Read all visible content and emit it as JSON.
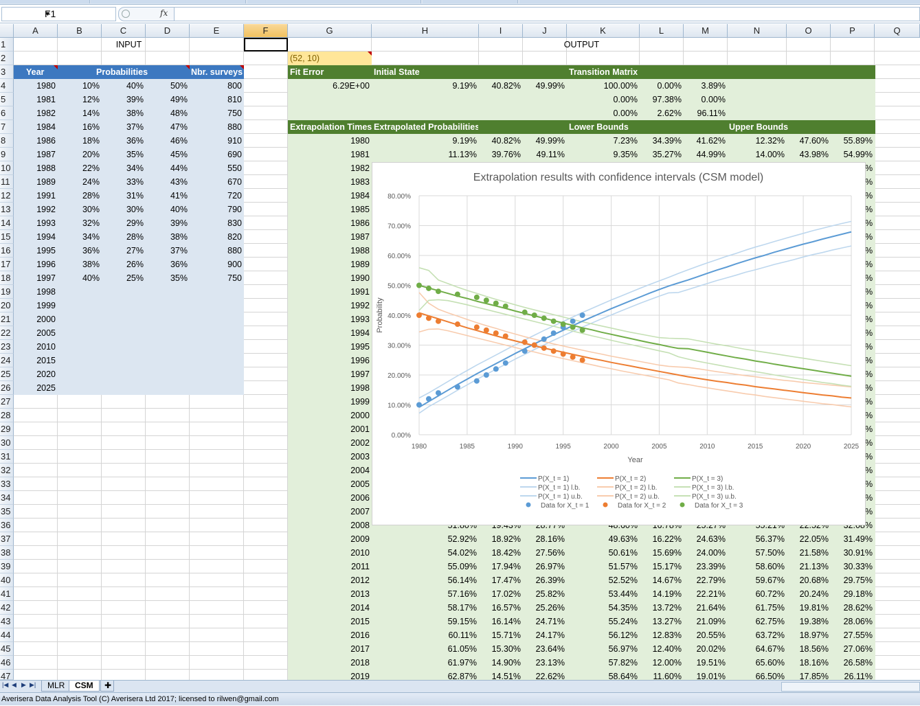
{
  "formula_bar": {
    "name_box": "F1",
    "fx_label": "fx",
    "formula": ""
  },
  "columns": [
    "A",
    "B",
    "C",
    "D",
    "E",
    "F",
    "G",
    "H",
    "I",
    "J",
    "K",
    "L",
    "M",
    "N",
    "O",
    "P",
    "Q"
  ],
  "rows": [
    "1",
    "2",
    "3",
    "4",
    "5",
    "6",
    "7",
    "8",
    "9",
    "10",
    "11",
    "12",
    "13",
    "14",
    "15",
    "16",
    "17",
    "18",
    "19",
    "20",
    "21",
    "22",
    "23",
    "24",
    "25",
    "26",
    "27",
    "28",
    "29",
    "30",
    "31",
    "32",
    "33",
    "34",
    "35",
    "36",
    "37",
    "38",
    "39",
    "40",
    "41",
    "42",
    "43",
    "44",
    "45",
    "46",
    "47"
  ],
  "input": {
    "title": "INPUT",
    "headers": {
      "year": "Year",
      "probabilities": "Probabilities",
      "surveys": "Nbr. surveys"
    },
    "data": [
      [
        "1980",
        "10%",
        "40%",
        "50%",
        "800"
      ],
      [
        "1981",
        "12%",
        "39%",
        "49%",
        "810"
      ],
      [
        "1982",
        "14%",
        "38%",
        "48%",
        "750"
      ],
      [
        "1984",
        "16%",
        "37%",
        "47%",
        "880"
      ],
      [
        "1986",
        "18%",
        "36%",
        "46%",
        "910"
      ],
      [
        "1987",
        "20%",
        "35%",
        "45%",
        "690"
      ],
      [
        "1988",
        "22%",
        "34%",
        "44%",
        "550"
      ],
      [
        "1989",
        "24%",
        "33%",
        "43%",
        "670"
      ],
      [
        "1991",
        "28%",
        "31%",
        "41%",
        "720"
      ],
      [
        "1992",
        "30%",
        "30%",
        "40%",
        "790"
      ],
      [
        "1993",
        "32%",
        "29%",
        "39%",
        "830"
      ],
      [
        "1994",
        "34%",
        "28%",
        "38%",
        "820"
      ],
      [
        "1995",
        "36%",
        "27%",
        "37%",
        "880"
      ],
      [
        "1996",
        "38%",
        "26%",
        "36%",
        "900"
      ],
      [
        "1997",
        "40%",
        "25%",
        "35%",
        "750"
      ]
    ],
    "extra_years": [
      "1998",
      "1999",
      "2000",
      "2005",
      "2010",
      "2015",
      "2020",
      "2025"
    ]
  },
  "output": {
    "title": "OUTPUT",
    "size_note": "(52, 10)",
    "headers": {
      "fit_error": "Fit Error",
      "initial_state": "Initial State",
      "transition": "Transition Matrix",
      "extrap_times": "Extrapolation Times",
      "extrap_probs": "Extrapolated Probabilities",
      "lower": "Lower Bounds",
      "upper": "Upper Bounds"
    },
    "fit_error": "6.29E+00",
    "initial_state": [
      "9.19%",
      "40.82%",
      "49.99%"
    ],
    "transition": [
      [
        "100.00%",
        "0.00%",
        "3.89%"
      ],
      [
        "0.00%",
        "97.38%",
        "0.00%"
      ],
      [
        "0.00%",
        "2.62%",
        "96.11%"
      ]
    ],
    "rows_top": [
      {
        "year": "1980",
        "p": [
          "9.19%",
          "40.82%",
          "49.99%"
        ],
        "lb": [
          "7.23%",
          "34.39%",
          "41.62%"
        ],
        "ub": [
          "12.32%",
          "47.60%",
          "55.89%"
        ]
      },
      {
        "year": "1981",
        "p": [
          "11.13%",
          "39.76%",
          "49.11%"
        ],
        "lb": [
          "9.35%",
          "35.27%",
          "44.99%"
        ],
        "ub": [
          "14.00%",
          "43.98%",
          "54.99%"
        ]
      }
    ],
    "mid_years": [
      "1982",
      "1983",
      "1984",
      "1985",
      "1986",
      "1987",
      "1988",
      "1989",
      "1990",
      "1991",
      "1992",
      "1993",
      "1994",
      "1995",
      "1996",
      "1997",
      "1998",
      "1999",
      "2000",
      "2001",
      "2002",
      "2003",
      "2004",
      "2005",
      "2006",
      "2007"
    ],
    "row_2008": {
      "year": "2008",
      "p": [
        "51.80%",
        "19.43%",
        "28.77%"
      ],
      "lb": [
        "48.60%",
        "16.78%",
        "25.27%"
      ],
      "ub": [
        "55.21%",
        "22.52%",
        "32.08%"
      ]
    },
    "rows_bottom": [
      {
        "year": "2009",
        "p": [
          "52.92%",
          "18.92%",
          "28.16%"
        ],
        "lb": [
          "49.63%",
          "16.22%",
          "24.63%"
        ],
        "ub": [
          "56.37%",
          "22.05%",
          "31.49%"
        ]
      },
      {
        "year": "2010",
        "p": [
          "54.02%",
          "18.42%",
          "27.56%"
        ],
        "lb": [
          "50.61%",
          "15.69%",
          "24.00%"
        ],
        "ub": [
          "57.50%",
          "21.58%",
          "30.91%"
        ]
      },
      {
        "year": "2011",
        "p": [
          "55.09%",
          "17.94%",
          "26.97%"
        ],
        "lb": [
          "51.57%",
          "15.17%",
          "23.39%"
        ],
        "ub": [
          "58.60%",
          "21.13%",
          "30.33%"
        ]
      },
      {
        "year": "2012",
        "p": [
          "56.14%",
          "17.47%",
          "26.39%"
        ],
        "lb": [
          "52.52%",
          "14.67%",
          "22.79%"
        ],
        "ub": [
          "59.67%",
          "20.68%",
          "29.75%"
        ]
      },
      {
        "year": "2013",
        "p": [
          "57.16%",
          "17.02%",
          "25.82%"
        ],
        "lb": [
          "53.44%",
          "14.19%",
          "22.21%"
        ],
        "ub": [
          "60.72%",
          "20.24%",
          "29.18%"
        ]
      },
      {
        "year": "2014",
        "p": [
          "58.17%",
          "16.57%",
          "25.26%"
        ],
        "lb": [
          "54.35%",
          "13.72%",
          "21.64%"
        ],
        "ub": [
          "61.75%",
          "19.81%",
          "28.62%"
        ]
      },
      {
        "year": "2015",
        "p": [
          "59.15%",
          "16.14%",
          "24.71%"
        ],
        "lb": [
          "55.24%",
          "13.27%",
          "21.09%"
        ],
        "ub": [
          "62.75%",
          "19.38%",
          "28.06%"
        ]
      },
      {
        "year": "2016",
        "p": [
          "60.11%",
          "15.71%",
          "24.17%"
        ],
        "lb": [
          "56.12%",
          "12.83%",
          "20.55%"
        ],
        "ub": [
          "63.72%",
          "18.97%",
          "27.55%"
        ]
      },
      {
        "year": "2017",
        "p": [
          "61.05%",
          "15.30%",
          "23.64%"
        ],
        "lb": [
          "56.97%",
          "12.40%",
          "20.02%"
        ],
        "ub": [
          "64.67%",
          "18.56%",
          "27.06%"
        ]
      },
      {
        "year": "2018",
        "p": [
          "61.97%",
          "14.90%",
          "23.13%"
        ],
        "lb": [
          "57.82%",
          "12.00%",
          "19.51%"
        ],
        "ub": [
          "65.60%",
          "18.16%",
          "26.58%"
        ]
      },
      {
        "year": "2019",
        "p": [
          "62.87%",
          "14.51%",
          "22.62%"
        ],
        "lb": [
          "58.64%",
          "11.60%",
          "19.01%"
        ],
        "ub": [
          "66.50%",
          "17.85%",
          "26.11%"
        ]
      }
    ],
    "edge_pct": "%"
  },
  "chart_data": {
    "type": "line",
    "title": "Extrapolation results with confidence intervals (CSM model)",
    "xlabel": "Year",
    "ylabel": "Probability",
    "xlim": [
      1980,
      2025
    ],
    "ylim": [
      0,
      80
    ],
    "xticks": [
      "1980",
      "1985",
      "1990",
      "1995",
      "2000",
      "2005",
      "2010",
      "2015",
      "2020",
      "2025"
    ],
    "yticks": [
      "0.00%",
      "10.00%",
      "20.00%",
      "30.00%",
      "40.00%",
      "50.00%",
      "60.00%",
      "70.00%",
      "80.00%"
    ],
    "grid": true,
    "legend_position": "bottom",
    "x": [
      1980,
      1981,
      1982,
      1983,
      1984,
      1985,
      1986,
      1987,
      1988,
      1989,
      1990,
      1991,
      1992,
      1993,
      1994,
      1995,
      1996,
      1997,
      1998,
      1999,
      2000,
      2001,
      2002,
      2003,
      2004,
      2005,
      2006,
      2007,
      2008,
      2009,
      2010,
      2011,
      2012,
      2013,
      2014,
      2015,
      2016,
      2017,
      2018,
      2019,
      2020,
      2021,
      2022,
      2023,
      2024,
      2025
    ],
    "series": [
      {
        "name": "P(X_t = 1)",
        "color": "#5b9bd5",
        "style": "line",
        "values": [
          9.2,
          11.1,
          13.0,
          14.9,
          16.8,
          18.6,
          20.4,
          22.1,
          23.8,
          25.5,
          27.2,
          28.8,
          30.4,
          32.0,
          33.5,
          35.0,
          36.5,
          38.0,
          39.4,
          40.8,
          42.2,
          43.5,
          44.8,
          46.1,
          47.4,
          48.6,
          49.8,
          50.8,
          51.8,
          52.9,
          54.0,
          55.1,
          56.1,
          57.2,
          58.2,
          59.2,
          60.1,
          61.1,
          62.0,
          62.9,
          63.8,
          64.6,
          65.5,
          66.3,
          67.1,
          67.9
        ]
      },
      {
        "name": "P(X_t = 1) l.b.",
        "color": "#bdd7ee",
        "style": "line",
        "values": [
          7.2,
          9.4,
          11.2,
          13.0,
          14.9,
          16.7,
          18.5,
          20.2,
          21.9,
          23.6,
          25.3,
          26.9,
          28.5,
          30.1,
          31.6,
          33.1,
          34.6,
          36.0,
          37.4,
          38.8,
          40.1,
          41.4,
          42.7,
          44.0,
          45.2,
          46.4,
          47.5,
          47.6,
          48.6,
          49.6,
          50.6,
          51.6,
          52.5,
          53.4,
          54.4,
          55.2,
          56.1,
          57.0,
          57.8,
          58.6,
          59.5,
          60.3,
          61.0,
          61.8,
          62.5,
          63.2
        ]
      },
      {
        "name": "P(X_t = 1) u.b.",
        "color": "#bdd7ee",
        "style": "line",
        "values": [
          12.3,
          14.0,
          15.9,
          17.8,
          19.7,
          21.5,
          23.3,
          25.0,
          26.7,
          28.4,
          30.1,
          31.7,
          33.3,
          34.9,
          36.4,
          37.9,
          39.4,
          40.9,
          42.3,
          43.7,
          45.1,
          46.4,
          47.7,
          49.0,
          50.3,
          51.5,
          52.7,
          54.0,
          55.2,
          56.4,
          57.5,
          58.6,
          59.7,
          60.7,
          61.8,
          62.8,
          63.7,
          64.7,
          65.6,
          66.5,
          67.4,
          68.3,
          69.1,
          69.9,
          70.7,
          71.4
        ]
      },
      {
        "name": "P(X_t = 2)",
        "color": "#ed7d31",
        "style": "line",
        "values": [
          40.8,
          39.8,
          38.8,
          37.8,
          36.8,
          35.8,
          34.9,
          34.0,
          33.1,
          32.2,
          31.4,
          30.6,
          29.8,
          29.0,
          28.3,
          27.6,
          26.9,
          26.2,
          25.5,
          24.9,
          24.2,
          23.6,
          23.0,
          22.4,
          21.8,
          21.2,
          20.6,
          20.0,
          19.4,
          18.9,
          18.4,
          17.9,
          17.5,
          17.0,
          16.6,
          16.1,
          15.7,
          15.3,
          14.9,
          14.5,
          14.1,
          13.7,
          13.3,
          13.0,
          12.6,
          12.3
        ]
      },
      {
        "name": "P(X_t = 2) l.b.",
        "color": "#f8cbad",
        "style": "line",
        "values": [
          34.4,
          35.3,
          35.4,
          34.8,
          34.0,
          33.2,
          32.4,
          31.6,
          30.8,
          30.0,
          29.2,
          28.4,
          27.7,
          26.9,
          26.2,
          25.5,
          24.8,
          24.1,
          23.4,
          22.7,
          22.1,
          21.4,
          20.8,
          20.2,
          19.6,
          19.0,
          18.4,
          17.3,
          16.8,
          16.2,
          15.7,
          15.2,
          14.7,
          14.2,
          13.7,
          13.3,
          12.8,
          12.4,
          12.0,
          11.6,
          11.2,
          10.8,
          10.4,
          10.1,
          9.7,
          9.3
        ]
      },
      {
        "name": "P(X_t = 2) u.b.",
        "color": "#f8cbad",
        "style": "line",
        "values": [
          47.6,
          44.0,
          42.0,
          40.8,
          39.7,
          38.6,
          37.5,
          36.5,
          35.6,
          34.6,
          33.7,
          32.8,
          32.0,
          31.2,
          30.4,
          29.7,
          29.0,
          28.3,
          27.6,
          27.0,
          26.3,
          25.7,
          25.1,
          24.5,
          23.9,
          23.3,
          22.9,
          22.7,
          22.5,
          22.1,
          21.6,
          21.1,
          20.7,
          20.2,
          19.8,
          19.4,
          19.0,
          18.6,
          18.2,
          17.9,
          17.5,
          17.2,
          16.9,
          16.6,
          16.3,
          16.0
        ]
      },
      {
        "name": "P(X_t = 3)",
        "color": "#70ad47",
        "style": "line",
        "values": [
          50.0,
          49.1,
          48.2,
          47.3,
          46.4,
          45.6,
          44.7,
          43.9,
          43.1,
          42.3,
          41.4,
          40.6,
          39.8,
          39.0,
          38.2,
          37.4,
          36.6,
          35.8,
          35.1,
          34.3,
          33.6,
          32.9,
          32.2,
          31.5,
          30.8,
          30.2,
          29.5,
          28.9,
          28.8,
          28.2,
          27.6,
          27.0,
          26.4,
          25.8,
          25.3,
          24.7,
          24.2,
          23.6,
          23.1,
          22.6,
          22.1,
          21.6,
          21.1,
          20.6,
          20.1,
          19.6
        ]
      },
      {
        "name": "P(X_t = 3) l.b.",
        "color": "#c5e0b4",
        "style": "line",
        "values": [
          41.6,
          45.0,
          45.2,
          44.9,
          44.2,
          43.5,
          42.7,
          41.9,
          41.1,
          40.3,
          39.5,
          38.7,
          37.9,
          37.1,
          36.3,
          35.5,
          34.7,
          33.9,
          33.1,
          32.4,
          31.6,
          30.9,
          30.2,
          29.5,
          28.8,
          28.1,
          27.4,
          26.1,
          25.3,
          24.6,
          24.0,
          23.4,
          22.8,
          22.2,
          21.6,
          21.1,
          20.6,
          20.0,
          19.5,
          19.0,
          18.5,
          18.0,
          17.5,
          17.1,
          16.6,
          16.2
        ]
      },
      {
        "name": "P(X_t = 3) u.b.",
        "color": "#c5e0b4",
        "style": "line",
        "values": [
          55.9,
          55.0,
          51.8,
          50.6,
          49.4,
          48.3,
          47.3,
          46.3,
          45.3,
          44.4,
          43.5,
          42.6,
          41.8,
          41.0,
          40.2,
          39.4,
          38.6,
          37.8,
          37.1,
          36.4,
          35.7,
          35.0,
          34.3,
          33.7,
          33.1,
          32.5,
          32.3,
          32.2,
          32.1,
          31.5,
          30.9,
          30.3,
          29.8,
          29.2,
          28.6,
          28.1,
          27.6,
          27.1,
          26.6,
          26.1,
          25.6,
          25.1,
          24.6,
          24.1,
          23.6,
          23.1
        ]
      },
      {
        "name": "Data for X_t = 1",
        "color": "#5b9bd5",
        "style": "dots",
        "points": [
          [
            1980,
            10
          ],
          [
            1981,
            12
          ],
          [
            1982,
            14
          ],
          [
            1984,
            16
          ],
          [
            1986,
            18
          ],
          [
            1987,
            20
          ],
          [
            1988,
            22
          ],
          [
            1989,
            24
          ],
          [
            1991,
            28
          ],
          [
            1992,
            30
          ],
          [
            1993,
            32
          ],
          [
            1994,
            34
          ],
          [
            1995,
            36
          ],
          [
            1996,
            38
          ],
          [
            1997,
            40
          ]
        ]
      },
      {
        "name": "Data for X_t = 2",
        "color": "#ed7d31",
        "style": "dots",
        "points": [
          [
            1980,
            40
          ],
          [
            1981,
            39
          ],
          [
            1982,
            38
          ],
          [
            1984,
            37
          ],
          [
            1986,
            36
          ],
          [
            1987,
            35
          ],
          [
            1988,
            34
          ],
          [
            1989,
            33
          ],
          [
            1991,
            31
          ],
          [
            1992,
            30
          ],
          [
            1993,
            29
          ],
          [
            1994,
            28
          ],
          [
            1995,
            27
          ],
          [
            1996,
            26
          ],
          [
            1997,
            25
          ]
        ]
      },
      {
        "name": "Data for X_t = 3",
        "color": "#70ad47",
        "style": "dots",
        "points": [
          [
            1980,
            50
          ],
          [
            1981,
            49
          ],
          [
            1982,
            48
          ],
          [
            1984,
            47
          ],
          [
            1986,
            46
          ],
          [
            1987,
            45
          ],
          [
            1988,
            44
          ],
          [
            1989,
            43
          ],
          [
            1991,
            41
          ],
          [
            1992,
            40
          ],
          [
            1993,
            39
          ],
          [
            1994,
            38
          ],
          [
            1995,
            37
          ],
          [
            1996,
            36
          ],
          [
            1997,
            35
          ]
        ]
      }
    ]
  },
  "sheet_tabs": {
    "tabs": [
      "MLR",
      "CSM"
    ],
    "active": "CSM"
  },
  "status_bar": {
    "text": "Averisera Data Analysis Tool (C) Averisera Ltd 2017; licensed to rilwen@gmail.com"
  }
}
